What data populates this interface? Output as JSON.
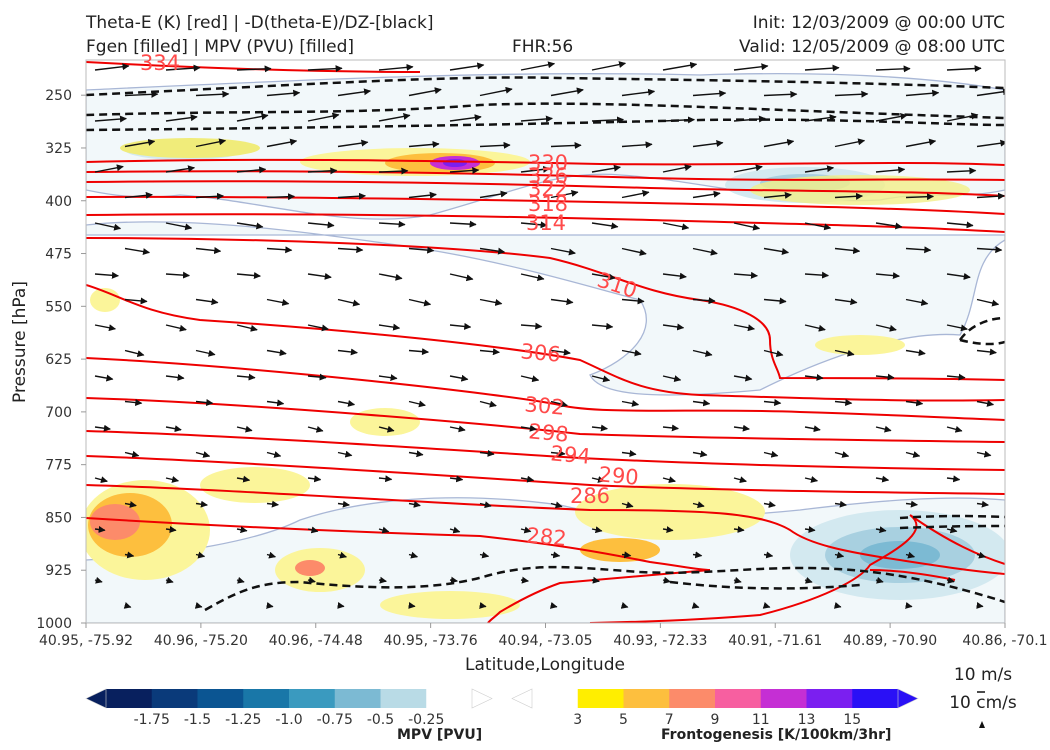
{
  "header": {
    "title_line1": "Theta-E (K) [red] | -D(theta-E)/DZ-[black]",
    "title_line2": "Fgen [filled] | MPV (PVU) [filled]",
    "fhr": "FHR:56",
    "init": "Init: 12/03/2009 @ 00:00 UTC",
    "valid": "Valid: 12/05/2009 @ 08:00 UTC"
  },
  "chart_data": {
    "type": "cross-section",
    "xlabel": "Latitude,Longitude",
    "ylabel": "Pressure [hPa]",
    "ylim": [
      1000,
      200
    ],
    "yticks": [
      "250",
      "325",
      "400",
      "475",
      "550",
      "625",
      "700",
      "775",
      "850",
      "925",
      "1000"
    ],
    "xticks": [
      "40.95, -75.92",
      "40.96, -75.20",
      "40.96, -74.48",
      "40.95, -73.76",
      "40.94, -73.05",
      "40.93, -72.33",
      "40.91, -71.61",
      "40.89, -70.90",
      "40.86, -70.1"
    ],
    "theta_e_contour_labels": [
      "334",
      "330",
      "326",
      "322",
      "318",
      "314",
      "310",
      "306",
      "302",
      "298",
      "294",
      "290",
      "286",
      "282"
    ],
    "wind_reference": {
      "horizontal": "10 m/s",
      "vertical": "10 cm/s"
    },
    "colorbars": [
      {
        "name": "MPV [PVU]",
        "ticks": [
          "-1.75",
          "-1.5",
          "-1.25",
          "-1.0",
          "-0.75",
          "-0.5",
          "-0.25"
        ],
        "colors": [
          "#08205e",
          "#0a3a7a",
          "#0b5592",
          "#1977a8",
          "#3a9abf",
          "#7cbad3",
          "#b9dbe6",
          "#ffffff"
        ]
      },
      {
        "name": "Frontogenesis [K/100km/3hr]",
        "ticks": [
          "3",
          "5",
          "7",
          "9",
          "11",
          "13",
          "15"
        ],
        "colors": [
          "#ffffff",
          "#ffee00",
          "#fdbf3e",
          "#fc8b6a",
          "#f75fa0",
          "#c52fd4",
          "#7b1ff0",
          "#2a10f6"
        ]
      }
    ]
  }
}
